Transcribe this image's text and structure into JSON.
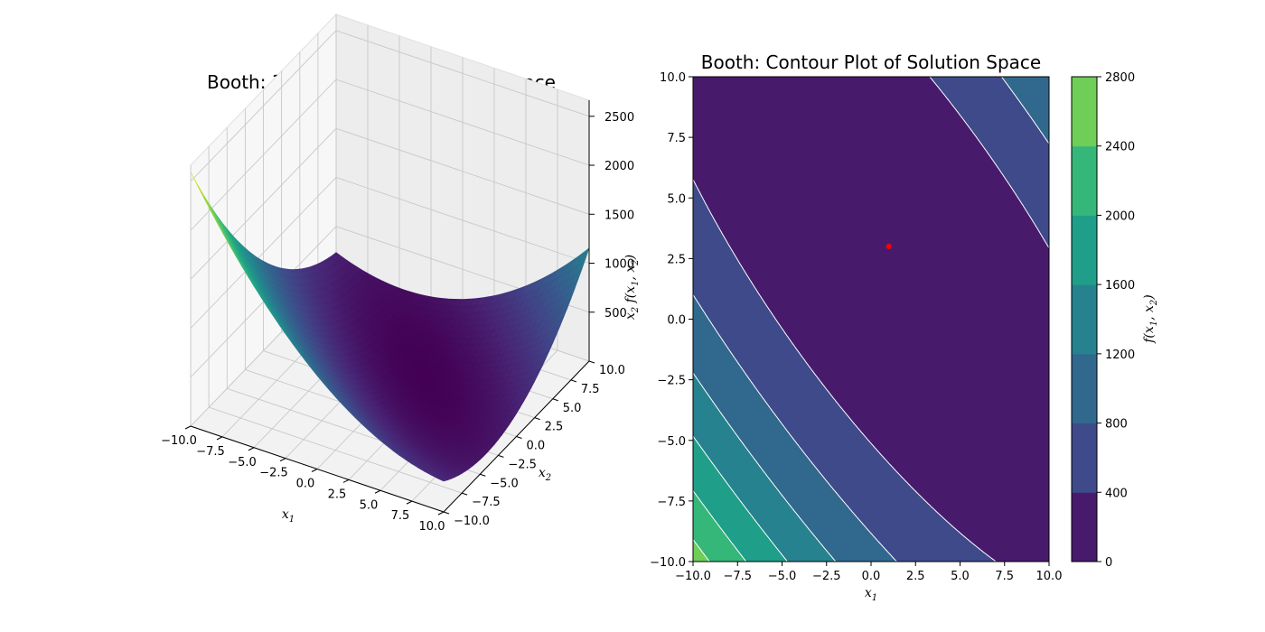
{
  "chart_data": [
    {
      "type": "surface3d",
      "title": "Booth: 3D Projection of Solution Space",
      "xlabel": "x_1",
      "ylabel": "x_2",
      "zlabel": "f(x_1, x_2)",
      "function": "(x1 + 2*x2 - 7)^2 + (2*x1 + x2 - 5)^2",
      "xlim": [
        -10,
        10
      ],
      "ylim": [
        -10,
        10
      ],
      "zlim": [
        0,
        2664
      ],
      "x_ticks": [
        "−10.0",
        "−7.5",
        "−5.0",
        "−2.5",
        "0.0",
        "2.5",
        "5.0",
        "7.5",
        "10.0"
      ],
      "y_ticks": [
        "−10.0",
        "−7.5",
        "−5.0",
        "−2.5",
        "0.0",
        "2.5",
        "5.0",
        "7.5",
        "10.0"
      ],
      "z_ticks": [
        "500",
        "1000",
        "1500",
        "2000",
        "2500"
      ],
      "colormap": "viridis",
      "grid": true
    },
    {
      "type": "contourf",
      "title": "Booth: Contour Plot of Solution Space",
      "xlabel": "x_1",
      "ylabel": "x_2",
      "function": "(x1 + 2*x2 - 7)^2 + (2*x1 + x2 - 5)^2",
      "xlim": [
        -10,
        10
      ],
      "ylim": [
        -10,
        10
      ],
      "x_ticks": [
        "−10.0",
        "−7.5",
        "−5.0",
        "−2.5",
        "0.0",
        "2.5",
        "5.0",
        "7.5",
        "10.0"
      ],
      "y_ticks": [
        "−10.0",
        "−7.5",
        "−5.0",
        "−2.5",
        "0.0",
        "2.5",
        "5.0",
        "7.5",
        "10.0"
      ],
      "levels": [
        0,
        400,
        800,
        1200,
        1600,
        2000,
        2400,
        2800
      ],
      "level_colors": [
        "#481a6c",
        "#3e4a89",
        "#31688e",
        "#26828e",
        "#1f9e89",
        "#35b779",
        "#6ece58",
        "#d2e21b"
      ],
      "minimum_marker": {
        "x": 1,
        "y": 3,
        "color": "#ff0000"
      },
      "colorbar": {
        "label": "f(x_1, x_2)",
        "ticks": [
          "0",
          "400",
          "800",
          "1200",
          "1600",
          "2000",
          "2400",
          "2800"
        ]
      }
    }
  ]
}
